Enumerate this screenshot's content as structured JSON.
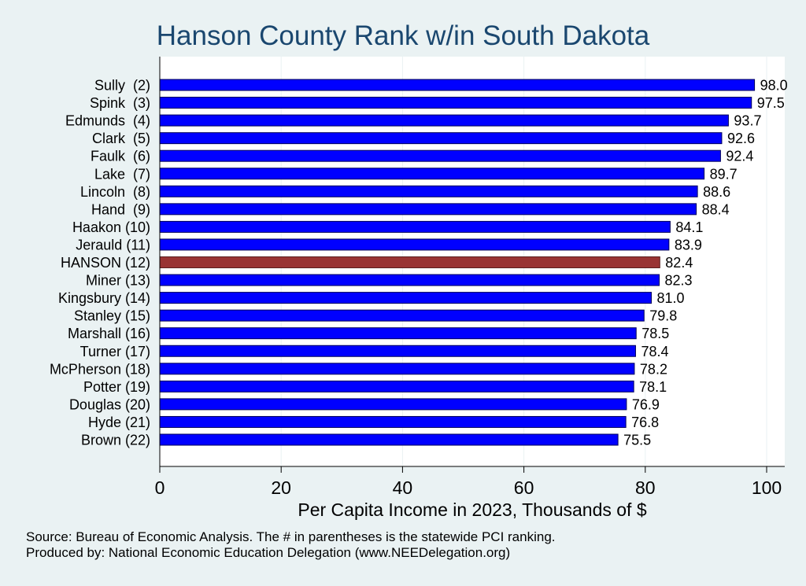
{
  "chart_data": {
    "type": "bar",
    "orientation": "horizontal",
    "title": "Hanson County Rank w/in South Dakota",
    "xlabel": "Per Capita Income in 2023, Thousands of $",
    "ylabel": "",
    "xlim": [
      0,
      100
    ],
    "x_ticks": [
      "0",
      "20",
      "40",
      "60",
      "80",
      "100"
    ],
    "categories": [
      "Sully  (2)",
      "Spink  (3)",
      "Edmunds  (4)",
      "Clark  (5)",
      "Faulk  (6)",
      "Lake  (7)",
      "Lincoln  (8)",
      "Hand  (9)",
      "Haakon (10)",
      "Jerauld (11)",
      "HANSON (12)",
      "Miner (13)",
      "Kingsbury (14)",
      "Stanley (15)",
      "Marshall (16)",
      "Turner (17)",
      "McPherson (18)",
      "Potter (19)",
      "Douglas (20)",
      "Hyde (21)",
      "Brown (22)"
    ],
    "values": [
      98.0,
      97.5,
      93.7,
      92.6,
      92.4,
      89.7,
      88.6,
      88.4,
      84.1,
      83.9,
      82.4,
      82.3,
      81.0,
      79.8,
      78.5,
      78.4,
      78.2,
      78.1,
      76.9,
      76.8,
      75.5
    ],
    "value_labels": [
      "98.0",
      "97.5",
      "93.7",
      "92.6",
      "92.4",
      "89.7",
      "88.6",
      "88.4",
      "84.1",
      "83.9",
      "82.4",
      "82.3",
      "81.0",
      "79.8",
      "78.5",
      "78.4",
      "78.2",
      "78.1",
      "76.9",
      "76.8",
      "75.5"
    ],
    "highlight_index": 10,
    "grid": true,
    "colors": {
      "bar": "#0000ff",
      "highlight": "#993333",
      "background": "#eaf2f3",
      "plot_background": "#ffffff",
      "title": "#1a476f"
    }
  },
  "notes": {
    "source": "Source: Bureau of Economic Analysis. The # in parentheses is the statewide PCI ranking.",
    "produced_by": "Produced by: National Economic Education Delegation (www.NEEDelegation.org)"
  }
}
